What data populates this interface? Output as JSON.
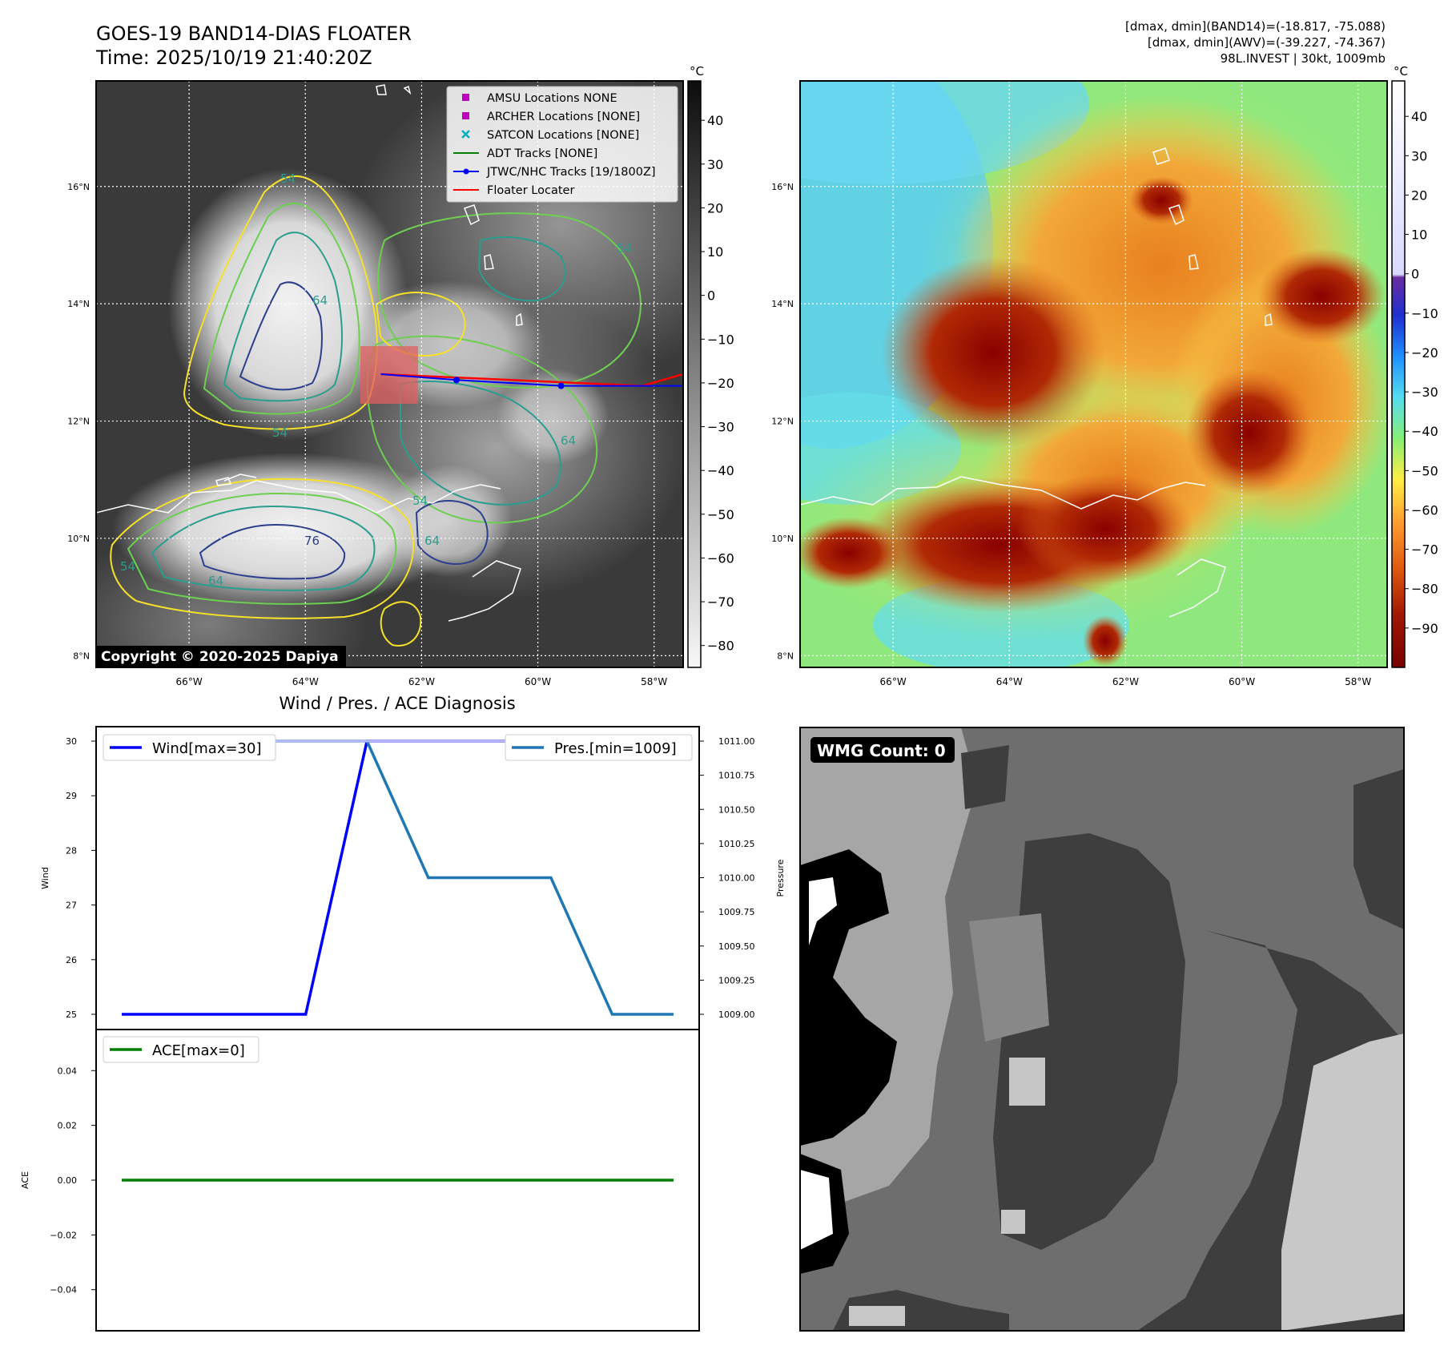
{
  "header": {
    "title_line1": "GOES-19 BAND14-DIAS FLOATER",
    "title_line2": "Time: 2025/10/19 21:40:20Z",
    "dmax_band14": "[dmax, dmin](BAND14)=(-18.817, -75.088)",
    "dmax_awv": "[dmax, dmin](AWV)=(-39.227, -74.367)",
    "storm_info": "98L.INVEST | 30kt, 1009mb"
  },
  "ir_panel": {
    "copyright": "Copyright © 2020-2025 Dapiya",
    "lat_labels": [
      "16°N",
      "14°N",
      "12°N",
      "10°N",
      "8°N"
    ],
    "lat_values": [
      16,
      14,
      12,
      10,
      8
    ],
    "lon_labels": [
      "66°W",
      "64°W",
      "62°W",
      "60°W",
      "58°W"
    ],
    "lon_values": [
      -66,
      -64,
      -62,
      -60,
      -58
    ],
    "extent": {
      "lon_min": -67.6,
      "lon_max": -57.5,
      "lat_min": 7.8,
      "lat_max": 17.8
    },
    "colorbar": {
      "unit": "°C",
      "ticks": [
        40,
        30,
        20,
        10,
        0,
        -10,
        -20,
        -30,
        -40,
        -50,
        -60,
        -70,
        -80
      ],
      "vmin": -85,
      "vmax": 49,
      "colors": {
        "top": "#111111",
        "bottom": "#f5f5f5"
      }
    },
    "contour_labels": [
      "54",
      "64",
      "54",
      "64",
      "76",
      "54",
      "64",
      "54",
      "64",
      "54"
    ],
    "legend": [
      {
        "label": "AMSU Locations NONE",
        "marker": "square",
        "color": "#c000c0"
      },
      {
        "label": "ARCHER Locations [NONE]",
        "marker": "square",
        "color": "#c000c0"
      },
      {
        "label": "SATCON Locations [NONE]",
        "marker": "x",
        "color": "#00b0c0"
      },
      {
        "label": "ADT Tracks [NONE]",
        "marker": "line",
        "color": "#008000"
      },
      {
        "label": "JTWC/NHC Tracks [19/1800Z]",
        "marker": "line-dot",
        "color": "#0000ff"
      },
      {
        "label": "Floater Locater",
        "marker": "line",
        "color": "#ff0000"
      }
    ],
    "jtwc_track": [
      {
        "lon": -62.7,
        "lat": 12.8
      },
      {
        "lon": -61.4,
        "lat": 12.7
      },
      {
        "lon": -59.6,
        "lat": 12.6
      },
      {
        "lon": -57.5,
        "lat": 12.6
      }
    ],
    "floater_locator": [
      {
        "lon": -62.7,
        "lat": 12.8
      },
      {
        "lon": -58.2,
        "lat": 12.6
      },
      {
        "lon": -57.5,
        "lat": 12.8
      }
    ]
  },
  "awv_panel": {
    "lat_labels": [
      "16°N",
      "14°N",
      "12°N",
      "10°N",
      "8°N"
    ],
    "lon_labels": [
      "66°W",
      "64°W",
      "62°W",
      "60°W",
      "58°W"
    ],
    "colorbar": {
      "unit": "°C",
      "ticks": [
        40,
        30,
        20,
        10,
        0,
        -10,
        -20,
        -30,
        -40,
        -50,
        -60,
        -70,
        -80,
        -90
      ],
      "vmin": -100,
      "vmax": 49
    }
  },
  "diagnosis": {
    "title": "Wind / Pres. / ACE Diagnosis"
  },
  "chart_data": [
    {
      "type": "line",
      "name": "wind-pressure",
      "x_index": [
        0,
        1,
        2,
        3,
        4,
        5,
        6,
        7,
        8,
        9
      ],
      "series": [
        {
          "name": "Wind[max=30]",
          "axis": "left",
          "color": "#0000ff",
          "values": [
            25,
            25,
            25,
            25,
            30,
            30,
            30,
            30,
            30,
            30
          ]
        },
        {
          "name": "Pres.[min=1009]",
          "axis": "right",
          "color": "#1f77b4",
          "values": [
            1011,
            1011,
            1011,
            1011,
            1011,
            1010,
            1010,
            1010,
            1009,
            1009
          ]
        },
        {
          "name": "",
          "axis": "left",
          "color": "#b8b8ff",
          "values": [
            30,
            30,
            30,
            30,
            30,
            30,
            30,
            30,
            30,
            30
          ]
        }
      ],
      "ylabel": "Wind",
      "ylabel_right": "Pressure",
      "ylim": [
        25,
        30
      ],
      "ylim_right": [
        1009,
        1011
      ],
      "yticks": [
        25,
        26,
        27,
        28,
        29,
        30
      ],
      "yticks_right": [
        "1009.00",
        "1009.25",
        "1009.50",
        "1009.75",
        "1010.00",
        "1010.25",
        "1010.50",
        "1010.75",
        "1011.00"
      ],
      "yticks_right_values": [
        1009,
        1009.25,
        1009.5,
        1009.75,
        1010,
        1010.25,
        1010.5,
        1010.75,
        1011
      ]
    },
    {
      "type": "line",
      "name": "ace",
      "x_index": [
        0,
        1,
        2,
        3,
        4,
        5,
        6,
        7,
        8,
        9
      ],
      "series": [
        {
          "name": "ACE[max=0]",
          "color": "#008000",
          "values": [
            0,
            0,
            0,
            0,
            0,
            0,
            0,
            0,
            0,
            0
          ]
        }
      ],
      "ylabel": "ACE",
      "ylim": [
        -0.055,
        0.055
      ],
      "yticks": [
        "0.04",
        "0.02",
        "0.00",
        "−0.02",
        "−0.04"
      ],
      "yticks_values": [
        0.04,
        0.02,
        0,
        -0.02,
        -0.04
      ]
    }
  ],
  "wmg_panel": {
    "label": "WMG Count: 0"
  }
}
